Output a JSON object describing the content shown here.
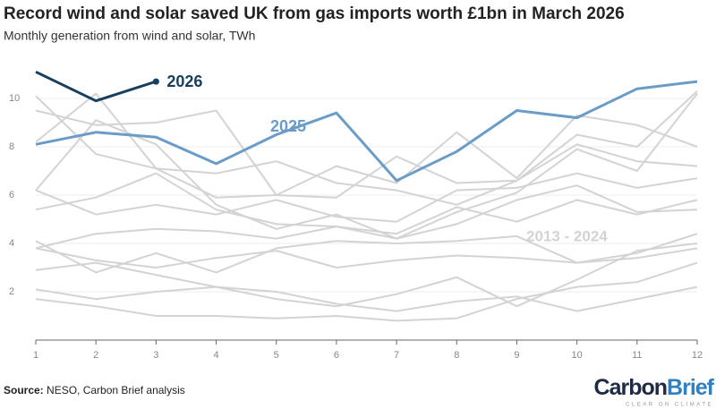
{
  "chart_data": {
    "type": "line",
    "title": "Record wind and solar saved UK from gas imports worth £1bn in March 2026",
    "subtitle": "Monthly generation from wind and solar, TWh",
    "x": [
      1,
      2,
      3,
      4,
      5,
      6,
      7,
      8,
      9,
      10,
      11,
      12
    ],
    "xlim": [
      1,
      12
    ],
    "xticks": [
      1,
      2,
      3,
      4,
      5,
      6,
      7,
      8,
      9,
      10,
      11,
      12
    ],
    "ylim": [
      0,
      11.5
    ],
    "yticks": [
      2,
      4,
      6,
      8,
      10
    ],
    "grid": true,
    "series": [
      {
        "name": "2025",
        "color": "#6a9cc7",
        "values": [
          8.1,
          8.6,
          8.4,
          7.3,
          8.5,
          9.4,
          6.6,
          7.8,
          9.5,
          9.2,
          10.4,
          10.7
        ]
      },
      {
        "name": "2026",
        "color": "#173f5f",
        "values": [
          11.1,
          9.9,
          10.7,
          null,
          null,
          null,
          null,
          null,
          null,
          null,
          null,
          null
        ]
      }
    ],
    "background_series": {
      "label": "2013 - 2024",
      "color": "#d3d3d3",
      "lines": [
        [
          10.1,
          7.7,
          7.1,
          6.9,
          7.4,
          6.5,
          6.2,
          5.6,
          6.6,
          8.1,
          7.4,
          7.2
        ],
        [
          9.5,
          8.9,
          9.0,
          9.5,
          6.0,
          7.2,
          6.5,
          8.6,
          6.7,
          9.3,
          8.9,
          8.0
        ],
        [
          8.2,
          10.2,
          7.1,
          5.9,
          6.0,
          5.9,
          7.6,
          6.5,
          6.6,
          8.5,
          8.0,
          10.3
        ],
        [
          6.2,
          9.1,
          8.1,
          5.6,
          4.6,
          5.2,
          4.2,
          5.3,
          6.1,
          7.9,
          7.0,
          10.2
        ],
        [
          6.2,
          5.2,
          5.6,
          5.2,
          5.8,
          5.1,
          4.9,
          6.2,
          6.3,
          6.9,
          6.3,
          6.7
        ],
        [
          5.4,
          5.9,
          6.9,
          5.4,
          4.8,
          4.7,
          4.2,
          4.8,
          5.8,
          6.4,
          5.3,
          5.4
        ],
        [
          3.8,
          4.4,
          4.6,
          4.5,
          4.2,
          4.7,
          4.4,
          5.5,
          4.9,
          5.8,
          5.2,
          5.8
        ],
        [
          4.1,
          2.8,
          3.6,
          2.8,
          3.8,
          4.1,
          4.0,
          4.1,
          4.3,
          3.2,
          3.4,
          3.8
        ],
        [
          3.8,
          3.3,
          3.0,
          3.4,
          3.7,
          3.0,
          3.3,
          3.5,
          3.4,
          3.2,
          3.6,
          4.4
        ],
        [
          2.9,
          3.2,
          2.7,
          2.2,
          1.7,
          1.4,
          1.9,
          2.6,
          1.4,
          2.5,
          3.7,
          4.0
        ],
        [
          2.1,
          1.7,
          2.0,
          2.2,
          2.0,
          1.5,
          1.2,
          1.6,
          1.8,
          1.2,
          1.7,
          2.2
        ],
        [
          1.7,
          1.4,
          1.0,
          1.0,
          0.9,
          1.0,
          0.8,
          0.9,
          1.7,
          2.2,
          2.4,
          3.2
        ]
      ]
    },
    "source_label": "Source:",
    "source_text": "NESO, Carbon Brief analysis",
    "logo": {
      "part1": "Carbon",
      "part2": "Brief",
      "tagline": "CLEAR ON CLIMATE"
    }
  }
}
